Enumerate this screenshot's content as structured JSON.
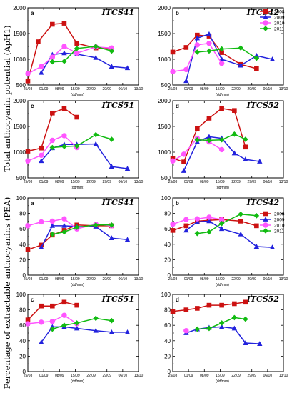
{
  "colors": {
    "2008": "#cc1111",
    "2009": "#2222dd",
    "2010": "#ff55ff",
    "2011": "#11bb11"
  },
  "marker_shapes": {
    "2008": "square",
    "2009": "triangle",
    "2010": "circle",
    "2011": "diamond"
  },
  "figure": {
    "ylabel_top": "Total anthocyanin potential (ApH1)",
    "ylabel_bottom": "Percentage of extractable anthocyanins (PEA)",
    "xunit": "(dd/mm)"
  },
  "chart_data": [
    {
      "type": "line",
      "panel_letter": "a",
      "title": "ITCS41",
      "ylim": [
        500,
        2000
      ],
      "yticks": [
        500,
        1000,
        1500,
        2000
      ],
      "ytick_labels": [
        "500",
        "1000",
        "1500",
        "2000"
      ],
      "x_categories": [
        "25/08",
        "01/09",
        "08/09",
        "15/09",
        "22/09",
        "29/09",
        "06/10",
        "13/10"
      ],
      "series": [
        {
          "name": "2008",
          "points": [
            [
              0,
              580
            ],
            [
              0.65,
              1340
            ],
            [
              1.55,
              1680
            ],
            [
              2.3,
              1700
            ],
            [
              3.1,
              1310
            ],
            [
              4.3,
              1220
            ],
            [
              5.3,
              1200
            ]
          ]
        },
        {
          "name": "2009",
          "points": [
            [
              0.85,
              740
            ],
            [
              1.55,
              1090
            ],
            [
              2.3,
              1120
            ],
            [
              3.1,
              1100
            ],
            [
              4.3,
              1030
            ],
            [
              5.3,
              860
            ],
            [
              6.3,
              830
            ]
          ]
        },
        {
          "name": "2010",
          "points": [
            [
              0,
              720
            ],
            [
              0.85,
              860
            ],
            [
              1.55,
              1040
            ],
            [
              2.3,
              1250
            ],
            [
              3.1,
              1120
            ],
            [
              4.3,
              1240
            ],
            [
              5.3,
              1220
            ]
          ]
        },
        {
          "name": "2011",
          "points": [
            [
              1.55,
              950
            ],
            [
              2.3,
              960
            ],
            [
              3.1,
              1210
            ],
            [
              4.3,
              1250
            ],
            [
              5.3,
              1160
            ]
          ]
        }
      ]
    },
    {
      "type": "line",
      "panel_letter": "b",
      "title": "ITCS42",
      "ylim": [
        500,
        2000
      ],
      "yticks": [
        500,
        1000,
        1500,
        2000
      ],
      "ytick_labels": [
        "500",
        "1000",
        "1500",
        "2000"
      ],
      "x_categories": [
        "25/08",
        "01/09",
        "08/09",
        "15/09",
        "22/09",
        "29/09",
        "06/10",
        "13/10"
      ],
      "series": [
        {
          "name": "2008",
          "points": [
            [
              0,
              1140
            ],
            [
              0.85,
              1230
            ],
            [
              1.55,
              1470
            ],
            [
              2.3,
              1450
            ],
            [
              3.1,
              1130
            ],
            [
              4.3,
              900
            ],
            [
              5.3,
              820
            ]
          ]
        },
        {
          "name": "2009",
          "points": [
            [
              0.85,
              580
            ],
            [
              1.55,
              1410
            ],
            [
              2.3,
              1490
            ],
            [
              3.1,
              1000
            ],
            [
              4.3,
              880
            ],
            [
              5.3,
              1070
            ],
            [
              6.3,
              1000
            ]
          ]
        },
        {
          "name": "2010",
          "points": [
            [
              0,
              760
            ],
            [
              0.85,
              800
            ],
            [
              1.55,
              1280
            ],
            [
              2.3,
              1310
            ],
            [
              3.1,
              920
            ]
          ]
        },
        {
          "name": "2011",
          "points": [
            [
              1.55,
              1140
            ],
            [
              2.3,
              1160
            ],
            [
              3.1,
              1200
            ],
            [
              4.3,
              1220
            ],
            [
              5.3,
              1020
            ]
          ]
        }
      ]
    },
    {
      "type": "line",
      "panel_letter": "c",
      "title": "ITCS51",
      "ylim": [
        500,
        2000
      ],
      "yticks": [
        500,
        1000,
        1500,
        2000
      ],
      "ytick_labels": [
        "500",
        "1000",
        "1500",
        "2000"
      ],
      "x_categories": [
        "25/08",
        "01/09",
        "08/09",
        "15/09",
        "22/09",
        "29/09",
        "06/10",
        "13/10"
      ],
      "series": [
        {
          "name": "2008",
          "points": [
            [
              0,
              1020
            ],
            [
              0.85,
              1080
            ],
            [
              1.55,
              1760
            ],
            [
              2.3,
              1850
            ],
            [
              3.1,
              1680
            ]
          ]
        },
        {
          "name": "2009",
          "points": [
            [
              0.85,
              830
            ],
            [
              1.55,
              1080
            ],
            [
              2.3,
              1150
            ],
            [
              3.1,
              1150
            ],
            [
              4.3,
              1160
            ],
            [
              5.3,
              720
            ],
            [
              6.3,
              680
            ]
          ]
        },
        {
          "name": "2010",
          "points": [
            [
              0,
              830
            ],
            [
              0.85,
              940
            ],
            [
              1.55,
              1230
            ],
            [
              2.3,
              1320
            ],
            [
              3.1,
              1090
            ]
          ]
        },
        {
          "name": "2011",
          "points": [
            [
              1.55,
              1090
            ],
            [
              2.3,
              1110
            ],
            [
              3.1,
              1120
            ],
            [
              4.3,
              1340
            ],
            [
              5.3,
              1250
            ]
          ]
        }
      ]
    },
    {
      "type": "line",
      "panel_letter": "d",
      "title": "ITCS52",
      "ylim": [
        500,
        2000
      ],
      "yticks": [
        500,
        1000,
        1500,
        2000
      ],
      "ytick_labels": [
        "500",
        "1000",
        "1500",
        "2000"
      ],
      "x_categories": [
        "25/08",
        "01/09",
        "08/09",
        "15/09",
        "22/09",
        "29/09",
        "06/10",
        "13/10"
      ],
      "series": [
        {
          "name": "2008",
          "points": [
            [
              0,
              880
            ],
            [
              0.7,
              810
            ],
            [
              1.55,
              1460
            ],
            [
              2.3,
              1660
            ],
            [
              3.1,
              1850
            ],
            [
              3.9,
              1810
            ],
            [
              4.6,
              1100
            ]
          ]
        },
        {
          "name": "2009",
          "points": [
            [
              0.7,
              640
            ],
            [
              1.55,
              1200
            ],
            [
              2.3,
              1300
            ],
            [
              3.1,
              1270
            ],
            [
              3.9,
              980
            ],
            [
              4.6,
              860
            ],
            [
              5.5,
              820
            ]
          ]
        },
        {
          "name": "2010",
          "points": [
            [
              0,
              830
            ],
            [
              0.7,
              960
            ],
            [
              1.55,
              1270
            ],
            [
              2.3,
              1200
            ],
            [
              3.1,
              1050
            ]
          ]
        },
        {
          "name": "2011",
          "points": [
            [
              1.55,
              1240
            ],
            [
              2.3,
              1230
            ],
            [
              3.1,
              1240
            ],
            [
              3.9,
              1350
            ],
            [
              4.6,
              1250
            ]
          ]
        }
      ]
    },
    {
      "type": "line",
      "panel_letter": "a",
      "title": "ITCS41",
      "ylim": [
        0,
        100
      ],
      "yticks": [
        0,
        20,
        40,
        60,
        80,
        100
      ],
      "ytick_labels": [
        "0",
        "20",
        "40",
        "60",
        "80",
        "100"
      ],
      "x_categories": [
        "25/08",
        "01/09",
        "08/09",
        "15/09",
        "22/09",
        "29/09",
        "06/10",
        "13/10"
      ],
      "series": [
        {
          "name": "2008",
          "points": [
            [
              0,
              33
            ],
            [
              0.85,
              39
            ],
            [
              1.55,
              52
            ],
            [
              2.3,
              58
            ],
            [
              3.1,
              65
            ],
            [
              4.3,
              64
            ],
            [
              5.3,
              64
            ]
          ]
        },
        {
          "name": "2009",
          "points": [
            [
              0.85,
              36
            ],
            [
              1.55,
              64
            ],
            [
              2.3,
              64
            ],
            [
              3.1,
              63
            ],
            [
              4.3,
              63
            ],
            [
              5.3,
              48
            ],
            [
              6.3,
              46
            ]
          ]
        },
        {
          "name": "2010",
          "points": [
            [
              0,
              64
            ],
            [
              0.85,
              69
            ],
            [
              1.55,
              70
            ],
            [
              2.3,
              73
            ],
            [
              3.1,
              60
            ],
            [
              4.3,
              66
            ],
            [
              5.3,
              64
            ]
          ]
        },
        {
          "name": "2011",
          "points": [
            [
              1.55,
              53
            ],
            [
              2.3,
              56
            ],
            [
              3.1,
              62
            ],
            [
              4.3,
              65
            ],
            [
              5.3,
              65
            ]
          ]
        }
      ]
    },
    {
      "type": "line",
      "panel_letter": "b",
      "title": "ITCS42",
      "ylim": [
        0,
        100
      ],
      "yticks": [
        0,
        20,
        40,
        60,
        80,
        100
      ],
      "ytick_labels": [
        "0",
        "20",
        "40",
        "60",
        "80",
        "100"
      ],
      "x_categories": [
        "25/08",
        "01/09",
        "08/09",
        "15/09",
        "22/09",
        "29/09",
        "06/10",
        "13/10"
      ],
      "series": [
        {
          "name": "2008",
          "points": [
            [
              0,
              58
            ],
            [
              0.85,
              64
            ],
            [
              1.55,
              70
            ],
            [
              2.3,
              71
            ],
            [
              3.1,
              72
            ],
            [
              4.3,
              70
            ],
            [
              5.3,
              64
            ]
          ]
        },
        {
          "name": "2009",
          "points": [
            [
              0.85,
              58
            ],
            [
              1.55,
              69
            ],
            [
              2.3,
              70
            ],
            [
              3.1,
              60
            ],
            [
              4.3,
              53
            ],
            [
              5.3,
              37
            ],
            [
              6.3,
              36
            ]
          ]
        },
        {
          "name": "2010",
          "points": [
            [
              0,
              66
            ],
            [
              0.85,
              72
            ],
            [
              1.55,
              73
            ],
            [
              2.3,
              75
            ],
            [
              3.1,
              72
            ]
          ]
        },
        {
          "name": "2011",
          "points": [
            [
              1.55,
              54
            ],
            [
              2.3,
              56
            ],
            [
              3.1,
              67
            ],
            [
              4.3,
              79
            ],
            [
              5.3,
              77
            ]
          ]
        }
      ]
    },
    {
      "type": "line",
      "panel_letter": "c",
      "title": "ITCS51",
      "ylim": [
        0,
        100
      ],
      "yticks": [
        0,
        20,
        40,
        60,
        80,
        100
      ],
      "ytick_labels": [
        "0",
        "20",
        "40",
        "60",
        "80",
        "100"
      ],
      "x_categories": [
        "25/08",
        "01/09",
        "08/09",
        "15/09",
        "22/09",
        "29/09",
        "06/10",
        "13/10"
      ],
      "series": [
        {
          "name": "2008",
          "points": [
            [
              0,
              67
            ],
            [
              0.85,
              85
            ],
            [
              1.55,
              85
            ],
            [
              2.3,
              90
            ],
            [
              3.1,
              86
            ]
          ]
        },
        {
          "name": "2009",
          "points": [
            [
              0.85,
              38
            ],
            [
              1.55,
              58
            ],
            [
              2.3,
              58
            ],
            [
              3.1,
              56
            ],
            [
              4.3,
              53
            ],
            [
              5.3,
              51
            ],
            [
              6.3,
              51
            ]
          ]
        },
        {
          "name": "2010",
          "points": [
            [
              0,
              62
            ],
            [
              0.85,
              64
            ],
            [
              1.55,
              65
            ],
            [
              2.3,
              73
            ],
            [
              3.1,
              62
            ]
          ]
        },
        {
          "name": "2011",
          "points": [
            [
              1.55,
              55
            ],
            [
              2.3,
              60
            ],
            [
              3.1,
              63
            ],
            [
              4.3,
              69
            ],
            [
              5.3,
              66
            ]
          ]
        }
      ]
    },
    {
      "type": "line",
      "panel_letter": "d",
      "title": "ITCS52",
      "ylim": [
        0,
        100
      ],
      "yticks": [
        0,
        20,
        40,
        60,
        80,
        100
      ],
      "ytick_labels": [
        "0",
        "20",
        "40",
        "60",
        "80",
        "100"
      ],
      "x_categories": [
        "25/08",
        "01/09",
        "08/09",
        "15/09",
        "22/09",
        "29/09",
        "06/10",
        "13/10"
      ],
      "series": [
        {
          "name": "2008",
          "points": [
            [
              0,
              78
            ],
            [
              0.85,
              80
            ],
            [
              1.55,
              82
            ],
            [
              2.3,
              86
            ],
            [
              3.1,
              86
            ],
            [
              3.9,
              88
            ],
            [
              4.6,
              90
            ]
          ]
        },
        {
          "name": "2009",
          "points": [
            [
              0.85,
              50
            ],
            [
              1.55,
              55
            ],
            [
              2.3,
              57
            ],
            [
              3.1,
              58
            ],
            [
              3.9,
              56
            ],
            [
              4.6,
              37
            ],
            [
              5.5,
              36
            ]
          ]
        },
        {
          "name": "2010",
          "points": [
            [
              0.85,
              53
            ]
          ]
        },
        {
          "name": "2011",
          "points": [
            [
              1.55,
              55
            ],
            [
              2.3,
              56
            ],
            [
              3.1,
              63
            ],
            [
              3.9,
              70
            ],
            [
              4.6,
              68
            ]
          ]
        }
      ]
    }
  ],
  "legends": [
    {
      "entries": [
        "2008",
        "2009",
        "2010",
        "2011"
      ]
    },
    {
      "entries": [
        "2008",
        "2009",
        "2010",
        "2011"
      ]
    }
  ]
}
